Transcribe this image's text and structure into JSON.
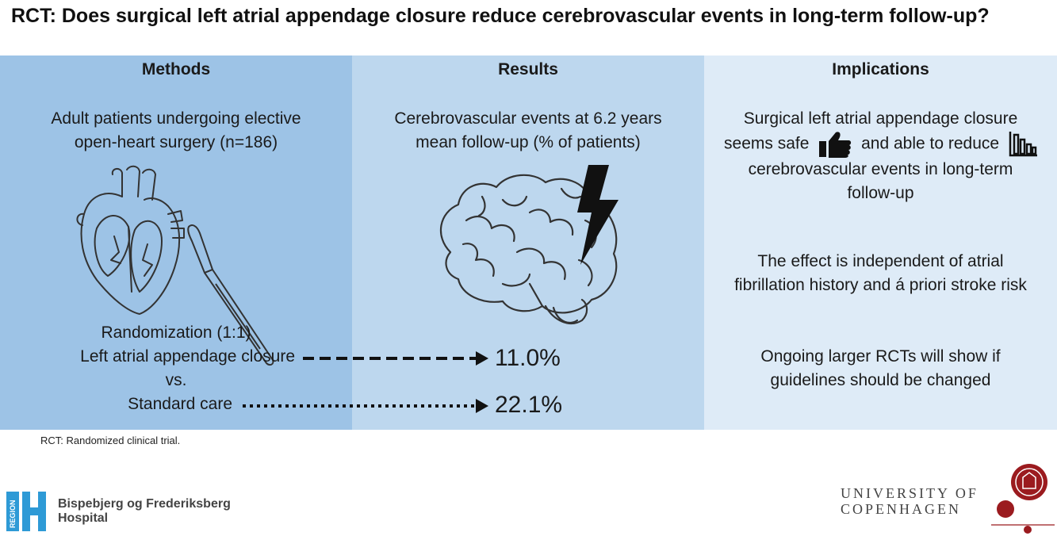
{
  "title": "RCT: Does surgical left atrial appendage closure reduce cerebrovascular events in long-term follow-up?",
  "methods": {
    "heading": "Methods",
    "population_line1": "Adult patients undergoing elective",
    "population_line2": "open-heart surgery (n=186)",
    "randomization": "Randomization (1:1)",
    "arm1": "Left atrial appendage closure",
    "vs": "vs.",
    "arm2": "Standard care",
    "icons": [
      "heart-icon",
      "scalpel-icon"
    ]
  },
  "results": {
    "heading": "Results",
    "outcome_line1": "Cerebrovascular events at 6.2 years",
    "outcome_line2": "mean follow-up (% of patients)",
    "arm1_value": "11.0%",
    "arm2_value": "22.1%",
    "icons": [
      "brain-icon",
      "lightning-icon"
    ]
  },
  "implications": {
    "heading": "Implications",
    "p1_line1": "Surgical left atrial appendage closure",
    "p1_line2a": "seems safe",
    "p1_line2b": "and able to reduce",
    "p1_line3": "cerebrovascular events in long-term",
    "p1_line4": "follow-up",
    "p2_line1": "The effect is independent of atrial",
    "p2_line2": "fibrillation history and á priori stroke risk",
    "p3_line1": "Ongoing larger RCTs will show if",
    "p3_line2": "guidelines should be changed",
    "icons": [
      "thumbs-up-icon",
      "bar-chart-icon"
    ]
  },
  "footnote": "RCT: Randomized clinical trial.",
  "hospital": {
    "logo_text": "REGION",
    "name_line1": "Bispebjerg og Frederiksberg",
    "name_line2": "Hospital"
  },
  "university": {
    "line1": "UNIVERSITY OF",
    "line2": "COPENHAGEN"
  },
  "colors": {
    "methods_bg": "#9dc3e6",
    "results_bg": "#bdd7ee",
    "implications_bg": "#deebf7",
    "hospital_blue": "#2e9ad6",
    "university_red": "#9b1b1f"
  }
}
